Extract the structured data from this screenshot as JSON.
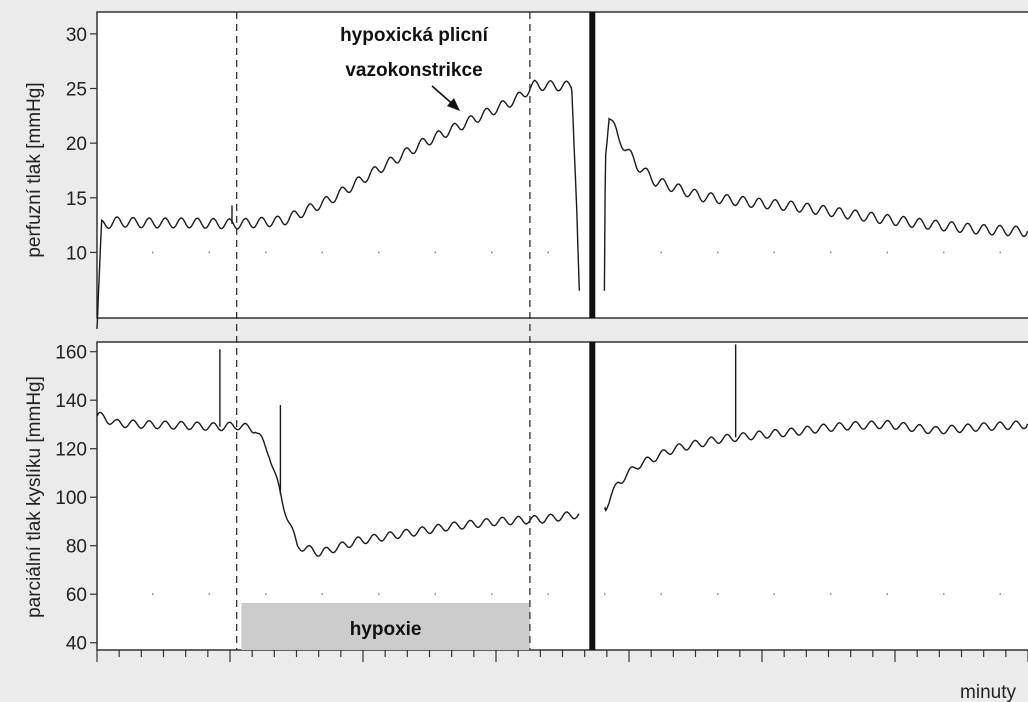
{
  "colors": {
    "background": "#ebebeb",
    "panel": "#ffffff",
    "line": "#1a1a1a",
    "band": "#cccccc"
  },
  "chart_data": [
    {
      "type": "line",
      "panel": "top",
      "ylabel": "perfuzní tlak [mmHg]",
      "ylim": [
        4,
        32
      ],
      "yticks": [
        "10",
        "15",
        "20",
        "25",
        "30"
      ],
      "x_range": [
        0,
        1
      ],
      "x_range_note": "x in fractions of the time axis; axis unit printed as minuty",
      "gap": [
        0.52,
        0.545
      ],
      "series": [
        {
          "x": [
            0,
            0.005,
            0.02,
            0.05,
            0.1,
            0.15,
            0.2,
            0.25,
            0.3,
            0.35,
            0.4,
            0.45,
            0.47,
            0.51,
            0.515,
            0.518
          ],
          "y": [
            3,
            12.5,
            12.8,
            12.7,
            12.7,
            12.6,
            12.9,
            14.8,
            17.5,
            20,
            22,
            24,
            25.3,
            25.2,
            15,
            6.5
          ]
        },
        {
          "x": [
            0.545,
            0.546,
            0.55,
            0.56,
            0.58,
            0.6,
            0.65,
            0.7,
            0.75,
            0.8,
            0.85,
            0.9,
            0.95,
            1.0
          ],
          "y": [
            6.5,
            19,
            22.5,
            20.5,
            18,
            16.5,
            15.1,
            14.6,
            14.2,
            13.6,
            13,
            12.5,
            12.1,
            11.9
          ]
        }
      ],
      "spikes": [
        {
          "x": 0.145,
          "y": 14.3
        }
      ],
      "dotted_ref_y": 10,
      "annotation": {
        "line1": "hypoxická plicní",
        "line2": "vazokonstrikce",
        "arrow_target": {
          "x": 0.39,
          "y": 23
        }
      }
    },
    {
      "type": "line",
      "panel": "bottom",
      "ylabel": "parciální tlak kyslíku [mmHg]",
      "ylim": [
        37,
        164
      ],
      "yticks": [
        "40",
        "60",
        "80",
        "100",
        "120",
        "140",
        "160"
      ],
      "x_range": [
        0,
        1
      ],
      "gap": [
        0.52,
        0.545
      ],
      "series": [
        {
          "x": [
            0,
            0.02,
            0.05,
            0.1,
            0.13,
            0.15,
            0.17,
            0.185,
            0.2,
            0.215,
            0.24,
            0.28,
            0.33,
            0.38,
            0.43,
            0.48,
            0.518
          ],
          "y": [
            134,
            130.5,
            130,
            129.5,
            129,
            129.5,
            128,
            118,
            97,
            80,
            77,
            82,
            85,
            88,
            90,
            91,
            93
          ]
        },
        {
          "x": [
            0.545,
            0.56,
            0.58,
            0.62,
            0.67,
            0.72,
            0.75,
            0.78,
            0.81,
            0.85,
            0.9,
            0.95,
            1.0
          ],
          "y": [
            95,
            106,
            113,
            120,
            124,
            126,
            127,
            128.5,
            129.5,
            130,
            127.5,
            129,
            130
          ]
        }
      ],
      "spikes": [
        {
          "x": 0.132,
          "y": 161
        },
        {
          "x": 0.197,
          "y": 138
        },
        {
          "x": 0.686,
          "y": 163
        }
      ],
      "dotted_ref_y": 60
    }
  ],
  "shared": {
    "xlabel": "minuty",
    "dashed_x": [
      0.15,
      0.465
    ],
    "event_x": 0.532,
    "band": {
      "x0": 0.155,
      "x1": 0.465,
      "label": "hypoxie"
    },
    "xtick_count": 42
  }
}
